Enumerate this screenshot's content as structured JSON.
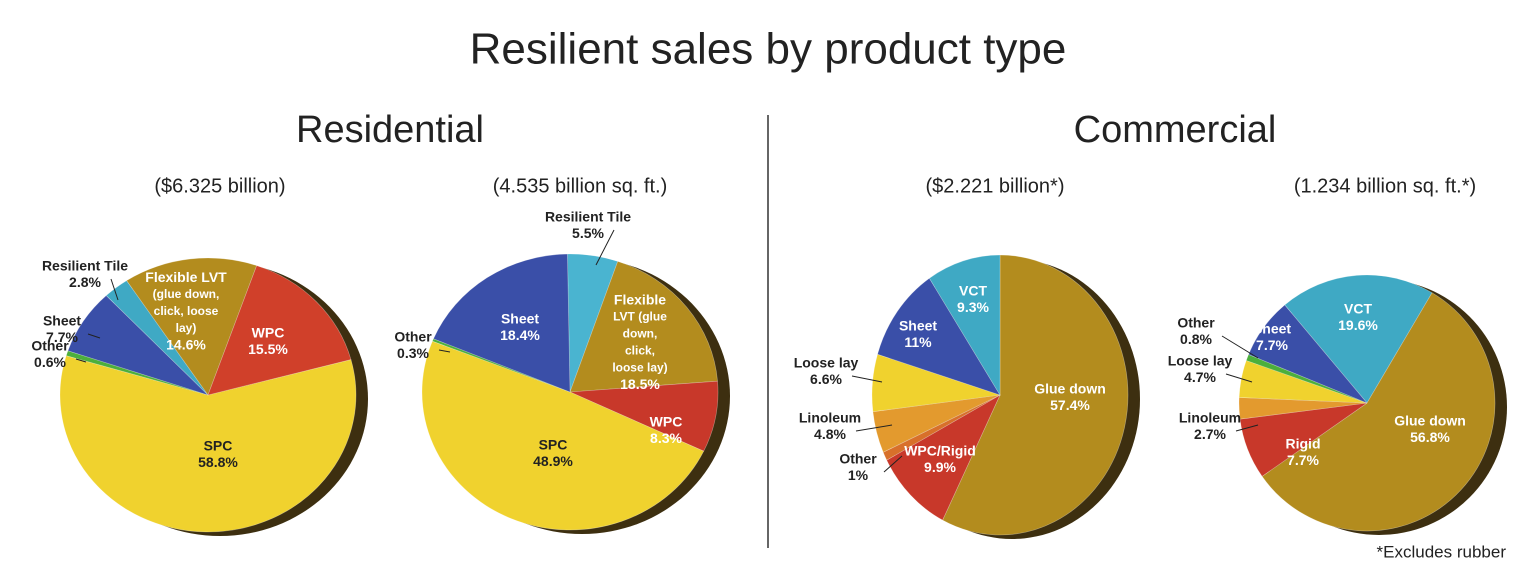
{
  "title": "Resilient sales by product type",
  "sections": [
    "Residential",
    "Commercial"
  ],
  "footnote": "*Excludes rubber",
  "chart_data": [
    {
      "type": "pie",
      "subtitle": "($6.325 billion)",
      "categories": [
        "SPC",
        "Other",
        "Sheet",
        "Resilient Tile",
        "Flexible LVT (glue down, click, loose lay)",
        "WPC"
      ],
      "values": [
        58.8,
        0.6,
        7.7,
        2.8,
        14.6,
        15.5
      ],
      "value_labels": [
        "58.8%",
        "0.6%",
        "7.7%",
        "2.8%",
        "14.6%",
        "15.5%"
      ],
      "colors": [
        "#f0d22e",
        "#4caf3c",
        "#3a4fa8",
        "#3fa9c4",
        "#b38c1e",
        "#d0402a"
      ]
    },
    {
      "type": "pie",
      "subtitle": "(4.535 billion sq. ft.)",
      "categories": [
        "Resilient Tile",
        "Flexible LVT (glue down, click, loose lay)",
        "WPC",
        "SPC",
        "Other",
        "Sheet"
      ],
      "values": [
        5.5,
        18.5,
        8.3,
        48.9,
        0.3,
        18.4
      ],
      "value_labels": [
        "5.5%",
        "18.5%",
        "8.3%",
        "48.9%",
        "0.3%",
        "18.4%"
      ],
      "colors": [
        "#4ab4d0",
        "#b38c1e",
        "#c8382a",
        "#f0d22e",
        "#4caf3c",
        "#3a4fa8"
      ]
    },
    {
      "type": "pie",
      "subtitle": "($2.221 billion*)",
      "categories": [
        "Glue down",
        "WPC/Rigid",
        "Other",
        "Linoleum",
        "Loose lay",
        "Sheet",
        "VCT"
      ],
      "values": [
        57.4,
        9.9,
        1,
        4.8,
        6.6,
        11,
        9.3
      ],
      "value_labels": [
        "57.4%",
        "9.9%",
        "1%",
        "4.8%",
        "6.6%",
        "11%",
        "9.3%"
      ],
      "colors": [
        "#b38c1e",
        "#c8382a",
        "#d8702a",
        "#e39a2e",
        "#f0d22e",
        "#3a4fa8",
        "#3fa9c4"
      ]
    },
    {
      "type": "pie",
      "subtitle": "(1.234 billion sq. ft.*)",
      "categories": [
        "VCT",
        "Glue down",
        "Rigid",
        "Linoleum",
        "Loose lay",
        "Other",
        "Sheet"
      ],
      "values": [
        19.6,
        56.8,
        7.7,
        2.7,
        4.7,
        0.8,
        7.7
      ],
      "value_labels": [
        "19.6%",
        "56.8%",
        "7.7%",
        "2.7%",
        "4.7%",
        "0.8%",
        "7.7%"
      ],
      "colors": [
        "#3fa9c4",
        "#b38c1e",
        "#c8382a",
        "#e39a2e",
        "#f0d22e",
        "#4caf3c",
        "#3a4fa8"
      ]
    }
  ]
}
